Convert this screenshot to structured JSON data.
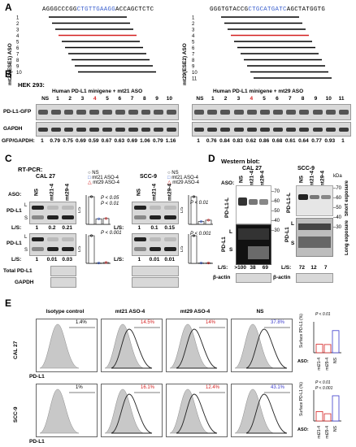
{
  "panelA": {
    "label": "A",
    "left": {
      "seq_pre": "AGGGCCCGG",
      "seq_hl": "CTGTTGAAGG",
      "seq_post": "ACCAGCTCTC",
      "ylabel": "mt21(ESE1) ASO",
      "nums": [
        "1",
        "2",
        "3",
        "4",
        "5",
        "6",
        "7",
        "8",
        "9",
        "10"
      ]
    },
    "right": {
      "seq_pre": "GGGTGTACCG",
      "seq_hl": "CTGCATGATC",
      "seq_post": "AGCTATGGTG",
      "ylabel": "mt29(ESE2) ASO",
      "nums": [
        "1",
        "2",
        "3",
        "4",
        "5",
        "6",
        "7",
        "8",
        "9",
        "10",
        "11"
      ]
    }
  },
  "panelB": {
    "label": "B",
    "cell": "HEK 293:",
    "left_title": "Human PD-L1 minigene + mt21 ASO",
    "right_title": "Human PD-L1 minigene + mt29 ASO",
    "left_lanes": [
      "NS",
      "1",
      "2",
      "3",
      "4",
      "5",
      "6",
      "7",
      "8",
      "9",
      "10"
    ],
    "right_lanes": [
      "NS",
      "1",
      "2",
      "3",
      "4",
      "5",
      "6",
      "7",
      "8",
      "9",
      "10",
      "11"
    ],
    "row1": "PD-L1-GFP",
    "row2": "GAPDH",
    "ratio_label": "GFP/GAPDH:",
    "left_ratios": [
      "1",
      "0.79",
      "0.75",
      "0.69",
      "0.59",
      "0.67",
      "0.63",
      "0.69",
      "1.06",
      "0.79",
      "1.16"
    ],
    "right_ratios": [
      "1",
      "0.76",
      "0.84",
      "0.83",
      "0.62",
      "0.86",
      "0.68",
      "0.61",
      "0.64",
      "0.77",
      "0.93",
      "1"
    ]
  },
  "panelC": {
    "label": "C",
    "title": "RT-PCR:",
    "cal": "CAL 27",
    "scc": "SCC-9",
    "aso": "ASO:",
    "lanes": [
      "NS",
      "mt21-4",
      "mt29-4"
    ],
    "legend": [
      "NS",
      "mt21 ASO-4",
      "mt29 ASO-4"
    ],
    "L": "L",
    "S": "S",
    "ratio_label": "L/S:",
    "cal_r1": [
      "1",
      "0.2",
      "0.21"
    ],
    "scc_r1": [
      "1",
      "0.1",
      "0.15"
    ],
    "cal_r2": [
      "1",
      "0.01",
      "0.03"
    ],
    "scc_r2": [
      "1",
      "0.01",
      "0.01"
    ],
    "row_pd": "PD-L1",
    "row_total": "Total PD-L1",
    "row_gapdh": "GAPDH",
    "p1a": "P < 0.05",
    "p1b": "P < 0.01",
    "p2": "P < 0.001",
    "p3": "P < 0.01",
    "p4": "P < 0.001",
    "ylab": "L/S"
  },
  "panelD": {
    "label": "D",
    "title": "Western blot:",
    "cal": "CAL 27",
    "scc": "SCC-9",
    "aso": "ASO:",
    "lanes": [
      "NS",
      "mt21-4",
      "mt29-4"
    ],
    "lanes2": [
      "NS",
      "mt21-4",
      "mt29-4"
    ],
    "kda": "kDa",
    "marks": [
      "70",
      "60",
      "50",
      "40",
      "30"
    ],
    "pdl1l": "PD-L1-L",
    "pdl1": "PD-L1",
    "L": "L",
    "S": "S",
    "ratio_label": "L/S:",
    "cal_ratios": [
      ">100",
      "38",
      "69"
    ],
    "scc_ratios": [
      "72",
      "12",
      "7"
    ],
    "actin": "β-actin",
    "short": "Short exposure",
    "long": "Long exposure"
  },
  "panelE": {
    "label": "E",
    "cols": [
      "Isotype control",
      "mt21 ASO-4",
      "mt29 ASO-4",
      "NS"
    ],
    "rows": [
      "CAL 27",
      "SCC-9"
    ],
    "xlab": "PD-L1",
    "cal_pct": [
      "1.4%",
      "14.5%",
      "14%",
      "37.8%"
    ],
    "scc_pct": [
      "1%",
      "16.1%",
      "12.4%",
      "43.1%"
    ],
    "ylab": "Surface PD-L1 (%)",
    "p_cal": "P < 0.01",
    "p_scc1": "P < 0.01",
    "p_scc2": "P < 0.001",
    "aso": "ASO:",
    "bars": [
      "mt21-4",
      "mt29-4",
      "NS"
    ],
    "chart_cal": [
      14.5,
      14,
      37.8
    ],
    "chart_scc": [
      16.1,
      12.4,
      43.1
    ]
  },
  "colors": {
    "red": "#d42020",
    "blue": "#3a5fcd"
  }
}
